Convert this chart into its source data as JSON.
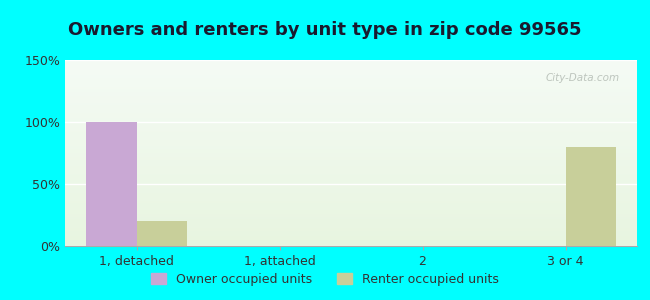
{
  "title": "Owners and renters by unit type in zip code 99565",
  "categories": [
    "1, detached",
    "1, attached",
    "2",
    "3 or 4"
  ],
  "owner_values": [
    100,
    0,
    0,
    0
  ],
  "renter_values": [
    20,
    0,
    0,
    80
  ],
  "owner_color": "#C9A8D4",
  "renter_color": "#C8CF9A",
  "ylim": [
    0,
    150
  ],
  "yticks": [
    0,
    50,
    100,
    150
  ],
  "ytick_labels": [
    "0%",
    "50%",
    "100%",
    "150%"
  ],
  "bar_width": 0.35,
  "background_outer": "#00FFFF",
  "legend_owner": "Owner occupied units",
  "legend_renter": "Renter occupied units",
  "watermark": "City-Data.com",
  "title_fontsize": 13,
  "tick_fontsize": 9,
  "legend_fontsize": 9
}
